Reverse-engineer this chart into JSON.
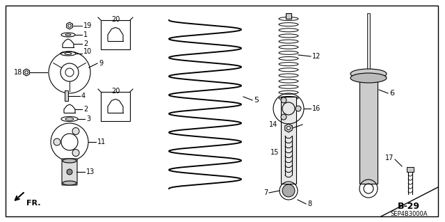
{
  "bg_color": "#ffffff",
  "border_color": "#000000",
  "line_color": "#000000",
  "text_color": "#000000",
  "diagram_code": "B-29",
  "ref_code": "SEP4B3000A",
  "fr_label": "FR."
}
